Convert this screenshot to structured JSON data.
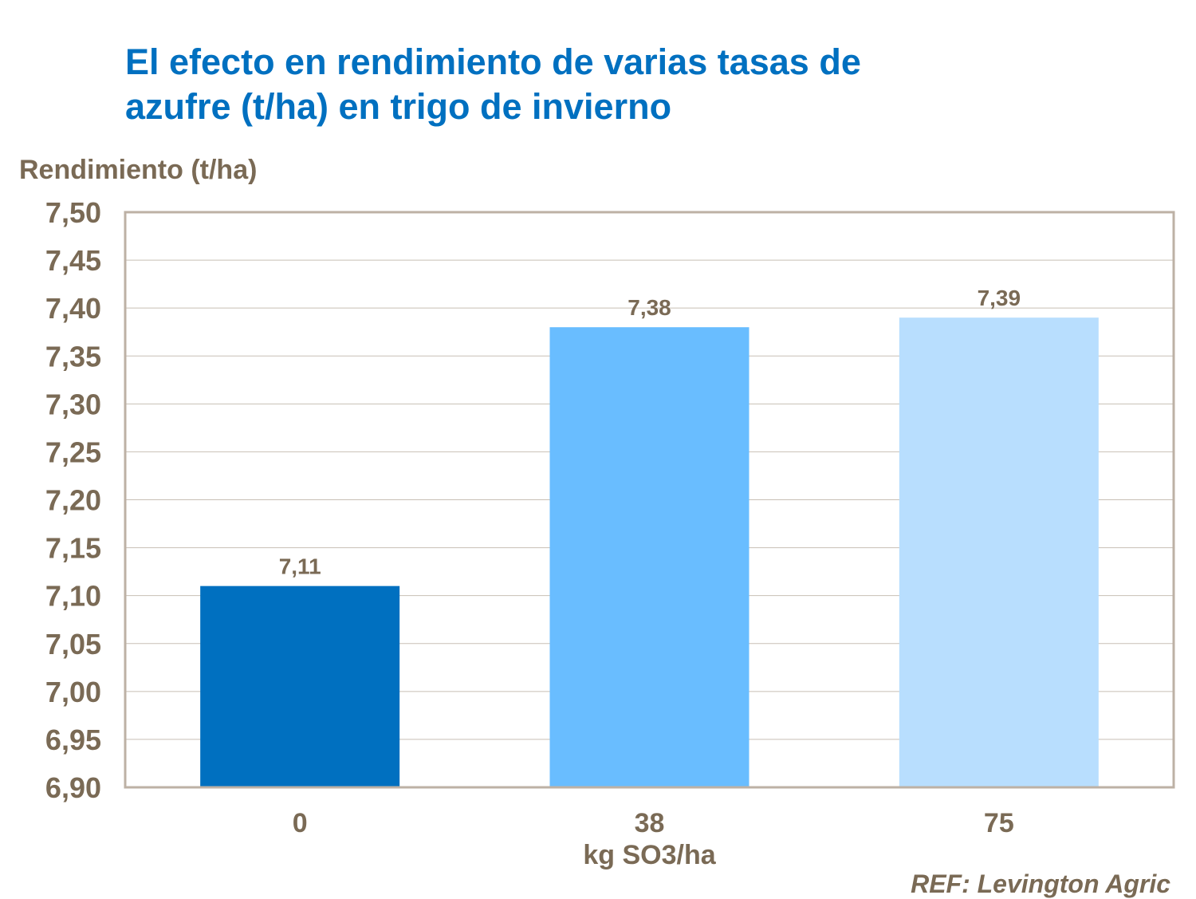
{
  "chart_data": {
    "type": "bar",
    "title": "El efecto en rendimiento de varias tasas de azufre (t/ha) en trigo de invierno",
    "title_lines": [
      "El efecto en rendimiento de varias tasas de",
      "azufre (t/ha) en trigo de invierno"
    ],
    "ylabel": "Rendimiento (t/ha)",
    "xlabel": "kg SO3/ha",
    "categories": [
      "0",
      "38",
      "75"
    ],
    "values": [
      7.11,
      7.38,
      7.39
    ],
    "data_labels": [
      "7,11",
      "7,38",
      "7,39"
    ],
    "colors": [
      "#0070C0",
      "#69BDFF",
      "#B8DEFE"
    ],
    "ylim": [
      6.9,
      7.5
    ],
    "yticks": [
      "6,90",
      "6,95",
      "7,00",
      "7,05",
      "7,10",
      "7,15",
      "7,20",
      "7,25",
      "7,30",
      "7,35",
      "7,40",
      "7,45",
      "7,50"
    ],
    "grid": true,
    "legend": "none"
  },
  "footer": {
    "reference": "REF: Levington Agric"
  },
  "colors": {
    "title": "#0070C0",
    "text": "#7A6A55",
    "frame": "#BDB1A5",
    "grid": "#C8BFB5"
  }
}
